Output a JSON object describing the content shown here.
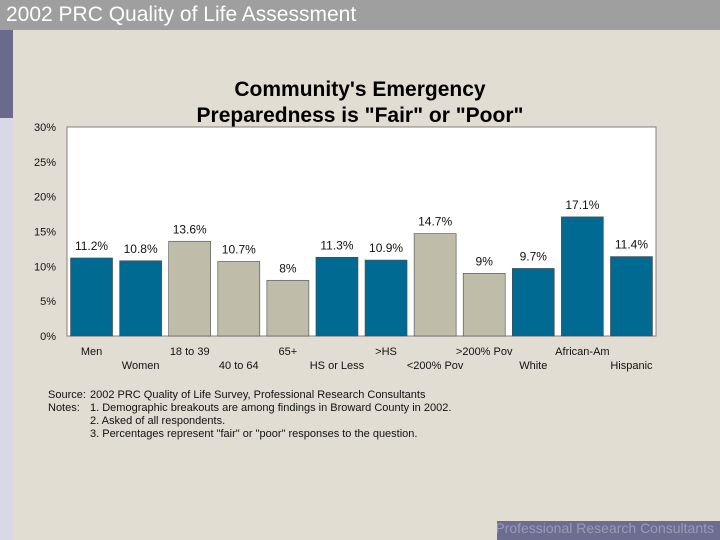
{
  "header": {
    "title": "2002 PRC Quality of Life Assessment"
  },
  "colors": {
    "dark_bar": "#006a92",
    "light_bar": "#bfbcaa",
    "title_bg": "#9f9f9f",
    "background": "#e2ddd3"
  },
  "chart_data": {
    "type": "bar",
    "title_line1": "Community's Emergency",
    "title_line2": "Preparedness is \"Fair\" or \"Poor\"",
    "categories": [
      "Men",
      "Women",
      "18 to 39",
      "40 to 64",
      "65+",
      "HS or Less",
      ">HS",
      "<200% Pov",
      ">200% Pov",
      "White",
      "African-Am",
      "Hispanic"
    ],
    "values": [
      11.2,
      10.8,
      13.6,
      10.7,
      8,
      11.3,
      10.9,
      14.7,
      9,
      9.7,
      17.1,
      11.4
    ],
    "value_labels": [
      "11.2%",
      "10.8%",
      "13.6%",
      "10.7%",
      "8%",
      "11.3%",
      "10.9%",
      "14.7%",
      "9%",
      "9.7%",
      "17.1%",
      "11.4%"
    ],
    "bar_colors": [
      "dark",
      "dark",
      "light",
      "light",
      "light",
      "dark",
      "dark",
      "light",
      "light",
      "dark",
      "dark",
      "dark"
    ],
    "ylim": [
      0,
      30
    ],
    "y_ticks": [
      "0%",
      "5%",
      "10%",
      "15%",
      "20%",
      "25%",
      "30%"
    ],
    "xlabel": "",
    "ylabel": "",
    "grid": false
  },
  "notes": {
    "source_label": "Source:",
    "source_text": "2002 PRC Quality of Life Survey, Professional Research Consultants",
    "notes_label": "Notes:",
    "items": [
      "1.  Demographic breakouts are among findings in Broward County in 2002.",
      "2.  Asked of all respondents.",
      "3.  Percentages represent \"fair\" or \"poor\" responses to the question."
    ]
  },
  "footer": {
    "text": "Professional Research Consultants"
  }
}
